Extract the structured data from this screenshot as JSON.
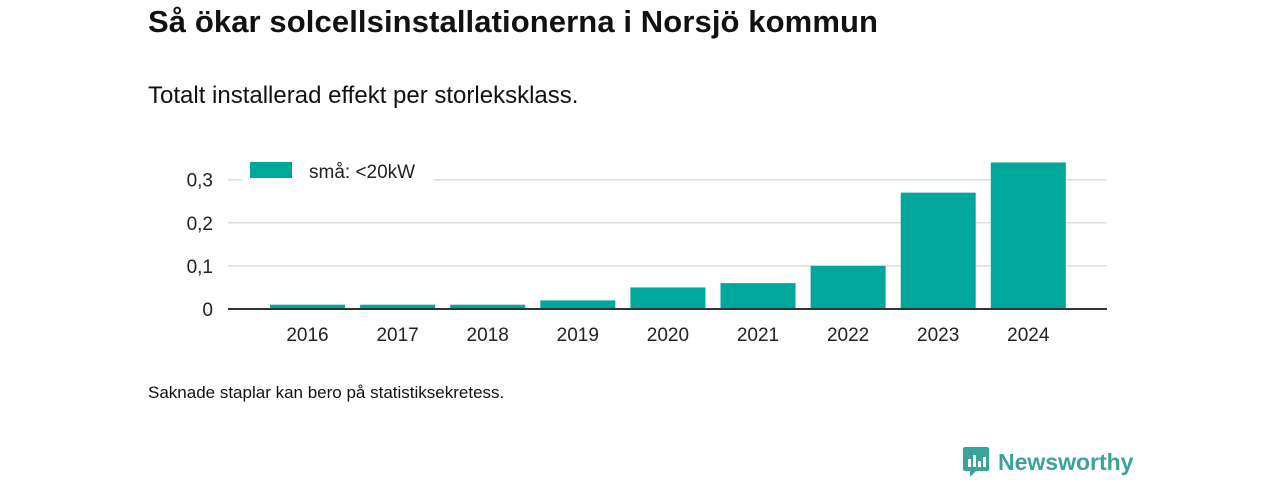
{
  "header": {
    "title": "Så ökar solcellsinstallationerna i Norsjö kommun",
    "subtitle": "Totalt installerad effekt per storleksklass."
  },
  "footer": {
    "note": "Saknade staplar kan bero på statistiksekretess.",
    "brand": "Newsworthy"
  },
  "colors": {
    "bar": "#00a79a",
    "grid": "#dddddd",
    "axis": "#333333",
    "brand": "#3aa49b"
  },
  "chart_data": {
    "type": "bar",
    "categories": [
      "2016",
      "2017",
      "2018",
      "2019",
      "2020",
      "2021",
      "2022",
      "2023",
      "2024"
    ],
    "series": [
      {
        "name": "små: <20kW",
        "values": [
          0.01,
          0.01,
          0.01,
          0.02,
          0.05,
          0.06,
          0.1,
          0.27,
          0.34
        ]
      }
    ],
    "yticks": [
      "0",
      "0,1",
      "0,2",
      "0,3"
    ],
    "ylim": [
      0,
      0.35
    ],
    "grid": true,
    "legend": "top-left"
  }
}
